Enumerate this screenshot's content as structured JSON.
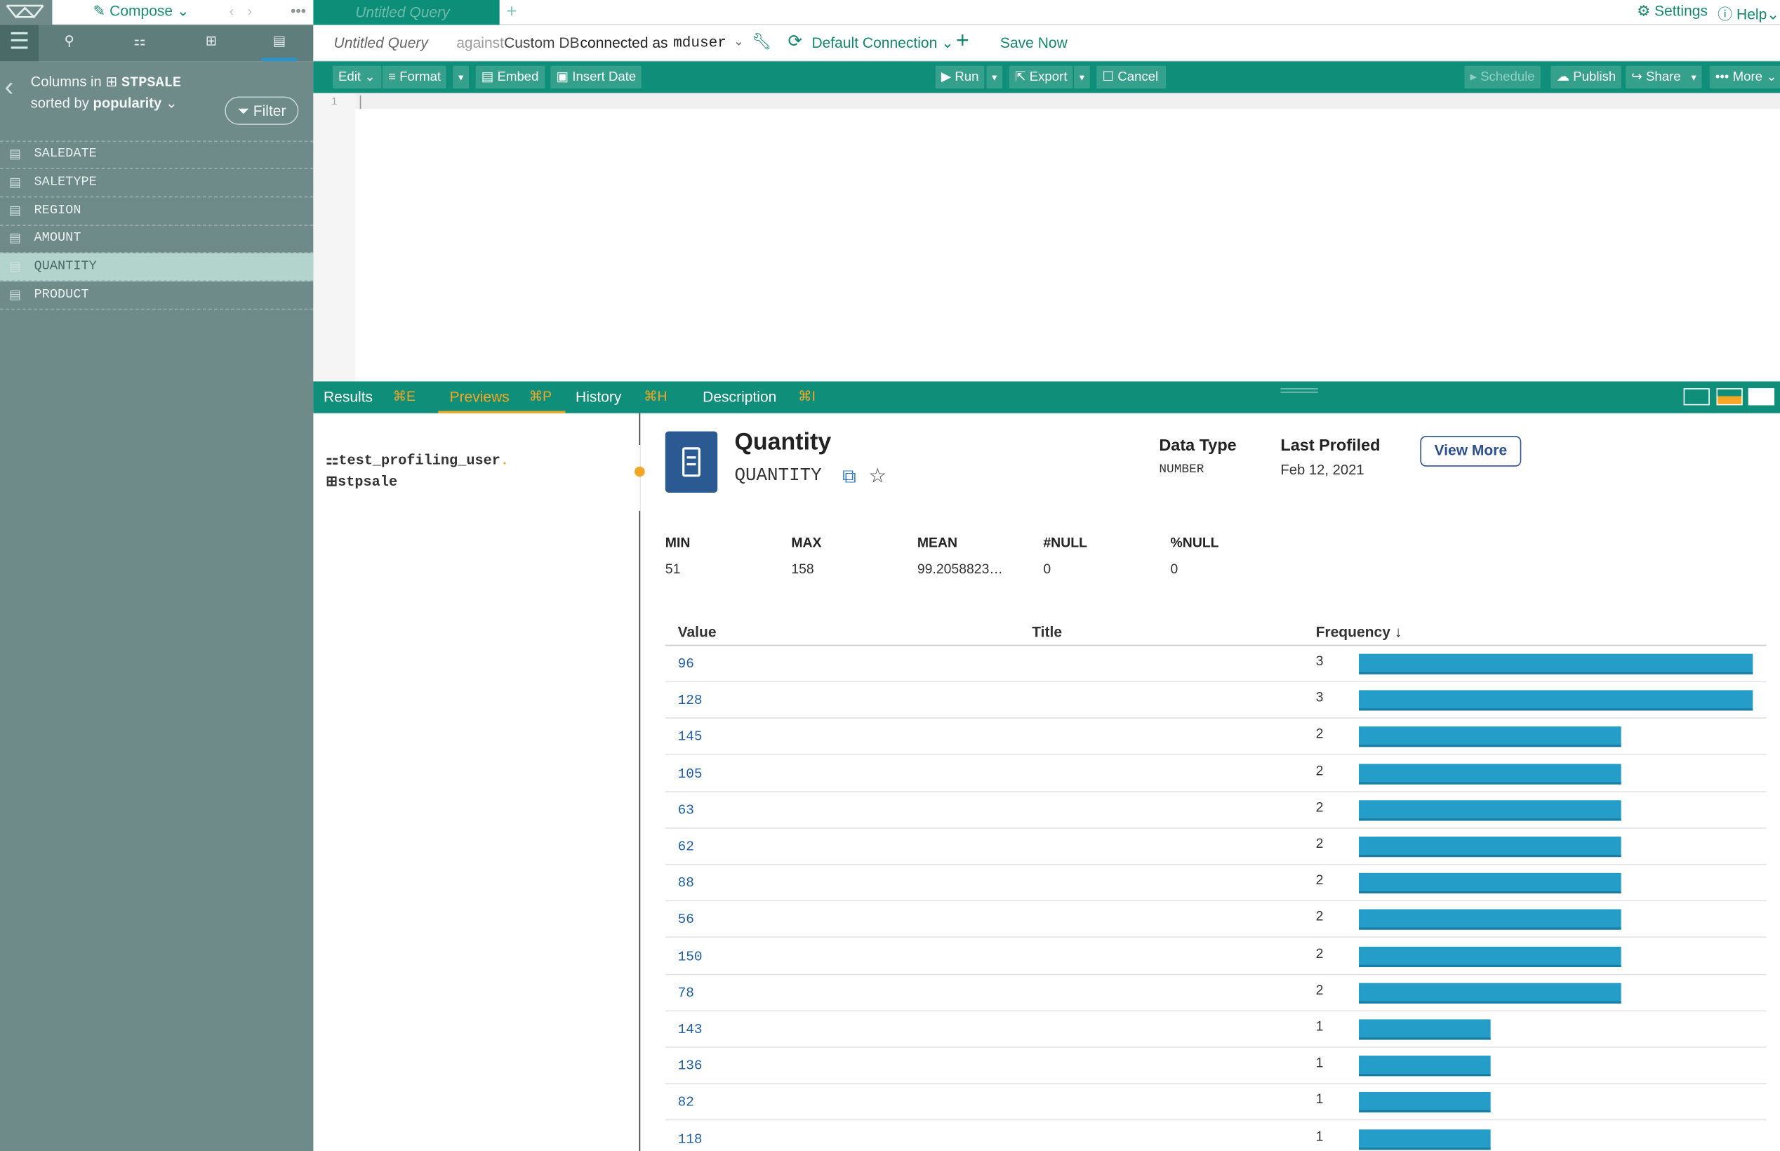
{
  "app": {
    "compose_label": "Compose",
    "nav_back": "‹",
    "nav_fwd": "›",
    "nav_more": "•••",
    "tab_title": "Untitled Query",
    "tab_add": "+",
    "settings_label": "Settings",
    "help_label": "Help"
  },
  "query_bar": {
    "title": "Untitled Query",
    "against": "against",
    "connection": "Custom DB",
    "connected_as": "connected as",
    "user": "mduser",
    "default_connection": "Default Connection",
    "add": "+",
    "save_now": "Save Now"
  },
  "toolbar": {
    "edit": "Edit",
    "format": "Format",
    "embed": "Embed",
    "insert_date": "Insert Date",
    "run": "Run",
    "export": "Export",
    "cancel": "Cancel",
    "schedule": "Schedule",
    "publish": "Publish",
    "share": "Share",
    "more": "More"
  },
  "editor": {
    "line_number": "1"
  },
  "sidebar": {
    "columns_in": "Columns in",
    "table": "STPSALE",
    "sorted_by": "sorted by",
    "sort_field": "popularity",
    "filter": "Filter",
    "columns": [
      "SALEDATE",
      "SALETYPE",
      "REGION",
      "AMOUNT",
      "QUANTITY",
      "PRODUCT"
    ],
    "selected": "QUANTITY"
  },
  "results_tabs": [
    {
      "label": "Results",
      "key": "⌘E"
    },
    {
      "label": "Previews",
      "key": "⌘P"
    },
    {
      "label": "History",
      "key": "⌘H"
    },
    {
      "label": "Description",
      "key": "⌘I"
    }
  ],
  "preview": {
    "schema": "test_profiling_user",
    "schema_dot": ".",
    "table": "stpsale"
  },
  "detail": {
    "title": "Quantity",
    "column": "QUANTITY",
    "data_type_label": "Data Type",
    "data_type": "NUMBER",
    "last_profiled_label": "Last Profiled",
    "last_profiled": "Feb 12, 2021",
    "view_more": "View More",
    "stats": [
      {
        "label": "MIN",
        "value": "51"
      },
      {
        "label": "MAX",
        "value": "158"
      },
      {
        "label": "MEAN",
        "value": "99.2058823…"
      },
      {
        "label": "#NULL",
        "value": "0"
      },
      {
        "label": "%NULL",
        "value": "0"
      }
    ],
    "table_headers": {
      "value": "Value",
      "title": "Title",
      "frequency": "Frequency ↓"
    },
    "rows": [
      {
        "value": "96",
        "frequency": 3
      },
      {
        "value": "128",
        "frequency": 3
      },
      {
        "value": "145",
        "frequency": 2
      },
      {
        "value": "105",
        "frequency": 2
      },
      {
        "value": "63",
        "frequency": 2
      },
      {
        "value": "62",
        "frequency": 2
      },
      {
        "value": "88",
        "frequency": 2
      },
      {
        "value": "56",
        "frequency": 2
      },
      {
        "value": "150",
        "frequency": 2
      },
      {
        "value": "78",
        "frequency": 2
      },
      {
        "value": "143",
        "frequency": 1
      },
      {
        "value": "136",
        "frequency": 1
      },
      {
        "value": "82",
        "frequency": 1
      },
      {
        "value": "118",
        "frequency": 1
      }
    ],
    "bar_color": "#249ec8"
  },
  "colors": {
    "teal": "#0f8f79",
    "sidebar": "#6e8b89",
    "accent": "#f5a623",
    "selected_row": "#b3d3cd"
  }
}
